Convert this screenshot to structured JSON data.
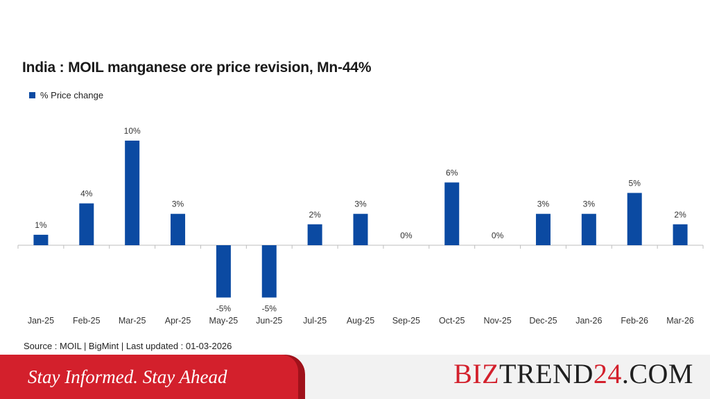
{
  "title": "India : MOIL manganese ore price revision, Mn-44%",
  "legend_label": "% Price change",
  "source": "Source : MOIL | BigMint | Last updated : 01-03-2026",
  "banner": {
    "text": "Stay Informed. Stay Ahead"
  },
  "brand": {
    "part1": "BIZ",
    "part2": "TREND",
    "part3": "24",
    "part4": ".COM"
  },
  "colors": {
    "bar": "#0b4aa2",
    "brand_red": "#d3202c",
    "brand_dark": "#1f1f1f",
    "banner_red": "#d3202c",
    "banner_dark": "#a0121b"
  },
  "chart_data": {
    "type": "bar",
    "title": "India : MOIL manganese ore price revision, Mn-44%",
    "xlabel": "",
    "ylabel": "",
    "categories": [
      "Jan-25",
      "Feb-25",
      "Mar-25",
      "Apr-25",
      "May-25",
      "Jun-25",
      "Jul-25",
      "Aug-25",
      "Sep-25",
      "Oct-25",
      "Nov-25",
      "Dec-25",
      "Jan-26",
      "Feb-26",
      "Mar-26"
    ],
    "series": [
      {
        "name": "% Price change",
        "values": [
          1,
          4,
          10,
          3,
          -5,
          -5,
          2,
          3,
          0,
          6,
          0,
          3,
          3,
          5,
          2
        ]
      }
    ],
    "data_labels": [
      "1%",
      "4%",
      "10%",
      "3%",
      "-5%",
      "-5%",
      "2%",
      "3%",
      "0%",
      "6%",
      "0%",
      "3%",
      "3%",
      "5%",
      "2%"
    ],
    "ylim": [
      -5,
      10
    ],
    "grid": false,
    "legend": "top-left"
  }
}
